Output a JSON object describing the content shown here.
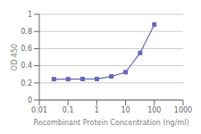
{
  "chart_data": {
    "type": "line",
    "x": [
      0.032,
      0.1,
      0.32,
      1.0,
      3.2,
      10.0,
      32.0,
      100.0
    ],
    "values": [
      0.243,
      0.244,
      0.246,
      0.246,
      0.275,
      0.325,
      0.55,
      0.88
    ],
    "color": "#6666bb",
    "marker": "square",
    "xlabel": "Recombinant Protein Concentration (ng/ml)",
    "ylabel": "OD 450",
    "log": "x",
    "xlim": [
      0.01,
      1000
    ],
    "ylim": [
      0,
      1.0
    ],
    "xticks": [
      0.01,
      0.1,
      1,
      10,
      100,
      1000
    ],
    "yticks": [
      0,
      0.2,
      0.4,
      0.6,
      0.8,
      1
    ],
    "grid": "y"
  }
}
